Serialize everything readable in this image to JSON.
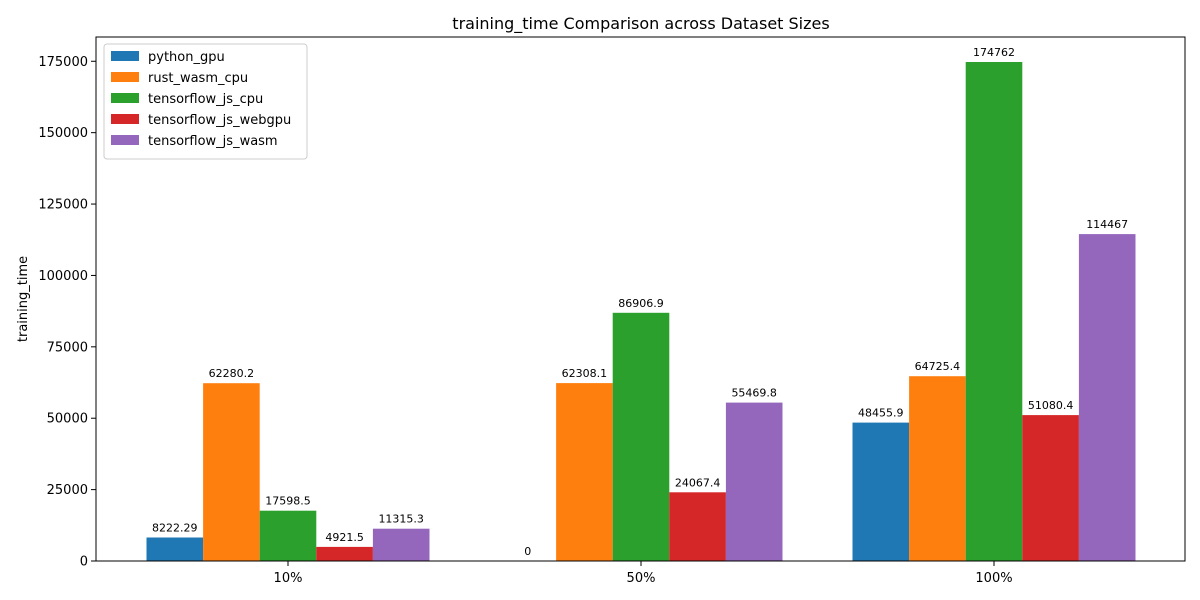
{
  "chart_data": {
    "type": "bar",
    "title": "training_time Comparison across Dataset Sizes",
    "xlabel": "",
    "ylabel": "training_time",
    "categories": [
      "10%",
      "50%",
      "100%"
    ],
    "ylim": [
      0,
      183500
    ],
    "yticks": [
      0,
      25000,
      50000,
      75000,
      100000,
      125000,
      150000,
      175000
    ],
    "legend_position": "top-left",
    "grid": false,
    "series": [
      {
        "name": "python_gpu",
        "color": "#1f77b4",
        "values": [
          8222.29,
          0,
          48455.9
        ],
        "labels": [
          "8222.29",
          "0",
          "48455.9"
        ]
      },
      {
        "name": "rust_wasm_cpu",
        "color": "#ff7f0e",
        "values": [
          62280.2,
          62308.1,
          64725.4
        ],
        "labels": [
          "62280.2",
          "62308.1",
          "64725.4"
        ]
      },
      {
        "name": "tensorflow_js_cpu",
        "color": "#2ca02c",
        "values": [
          17598.5,
          86906.9,
          174762
        ],
        "labels": [
          "17598.5",
          "86906.9",
          "174762"
        ]
      },
      {
        "name": "tensorflow_js_webgpu",
        "color": "#d62728",
        "values": [
          4921.5,
          24067.4,
          51080.4
        ],
        "labels": [
          "4921.5",
          "24067.4",
          "51080.4"
        ]
      },
      {
        "name": "tensorflow_js_wasm",
        "color": "#9467bd",
        "values": [
          11315.3,
          55469.8,
          114467
        ],
        "labels": [
          "11315.3",
          "55469.8",
          "114467"
        ]
      }
    ]
  }
}
